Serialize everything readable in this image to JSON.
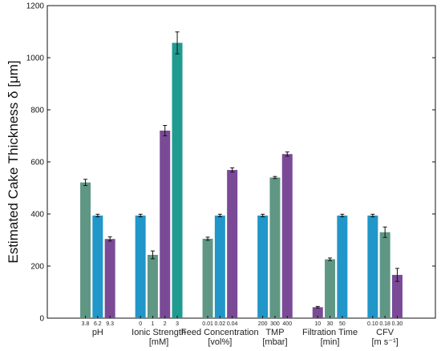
{
  "chart_data": {
    "type": "bar",
    "ylabel": "Estimated Cake Thickness δ [μm]",
    "ylim": [
      0,
      1200
    ],
    "yticks": [
      0,
      200,
      400,
      600,
      800,
      1000,
      1200
    ],
    "grid": false,
    "colors": {
      "green": "#5f9784",
      "blue": "#2196c9",
      "purple": "#7a4a97",
      "teal": "#1f9b8f"
    },
    "groups": [
      {
        "label": "pH",
        "unit": "",
        "bars": [
          {
            "category": "3.8",
            "value": 521,
            "error": 12,
            "color": "green"
          },
          {
            "category": "6.2",
            "value": 394,
            "error": 5,
            "color": "blue"
          },
          {
            "category": "9.3",
            "value": 304,
            "error": 8,
            "color": "purple"
          }
        ]
      },
      {
        "label": "Ionic Strength",
        "unit": "[mM]",
        "bars": [
          {
            "category": "0",
            "value": 394,
            "error": 5,
            "color": "blue"
          },
          {
            "category": "1",
            "value": 243,
            "error": 15,
            "color": "green"
          },
          {
            "category": "2",
            "value": 720,
            "error": 20,
            "color": "purple"
          },
          {
            "category": "3",
            "value": 1057,
            "error": 42,
            "color": "teal"
          }
        ]
      },
      {
        "label": "Feed Concentration",
        "unit": "[vol%]",
        "bars": [
          {
            "category": "0.01",
            "value": 305,
            "error": 6,
            "color": "green"
          },
          {
            "category": "0.02",
            "value": 394,
            "error": 5,
            "color": "blue"
          },
          {
            "category": "0.04",
            "value": 569,
            "error": 8,
            "color": "purple"
          }
        ]
      },
      {
        "label": "TMP",
        "unit": "[mbar]",
        "bars": [
          {
            "category": "200",
            "value": 394,
            "error": 5,
            "color": "blue"
          },
          {
            "category": "300",
            "value": 540,
            "error": 4,
            "color": "green"
          },
          {
            "category": "400",
            "value": 630,
            "error": 8,
            "color": "purple"
          }
        ]
      },
      {
        "label": "Filtration Time",
        "unit": "[min]",
        "bars": [
          {
            "category": "10",
            "value": 42,
            "error": 3,
            "color": "purple"
          },
          {
            "category": "30",
            "value": 226,
            "error": 5,
            "color": "green"
          },
          {
            "category": "50",
            "value": 394,
            "error": 5,
            "color": "blue"
          }
        ]
      },
      {
        "label": "CFV",
        "unit": "[m s⁻¹]",
        "bars": [
          {
            "category": "0.10",
            "value": 394,
            "error": 5,
            "color": "blue"
          },
          {
            "category": "0.18",
            "value": 330,
            "error": 20,
            "color": "green"
          },
          {
            "category": "0.30",
            "value": 166,
            "error": 25,
            "color": "purple"
          }
        ]
      }
    ]
  }
}
